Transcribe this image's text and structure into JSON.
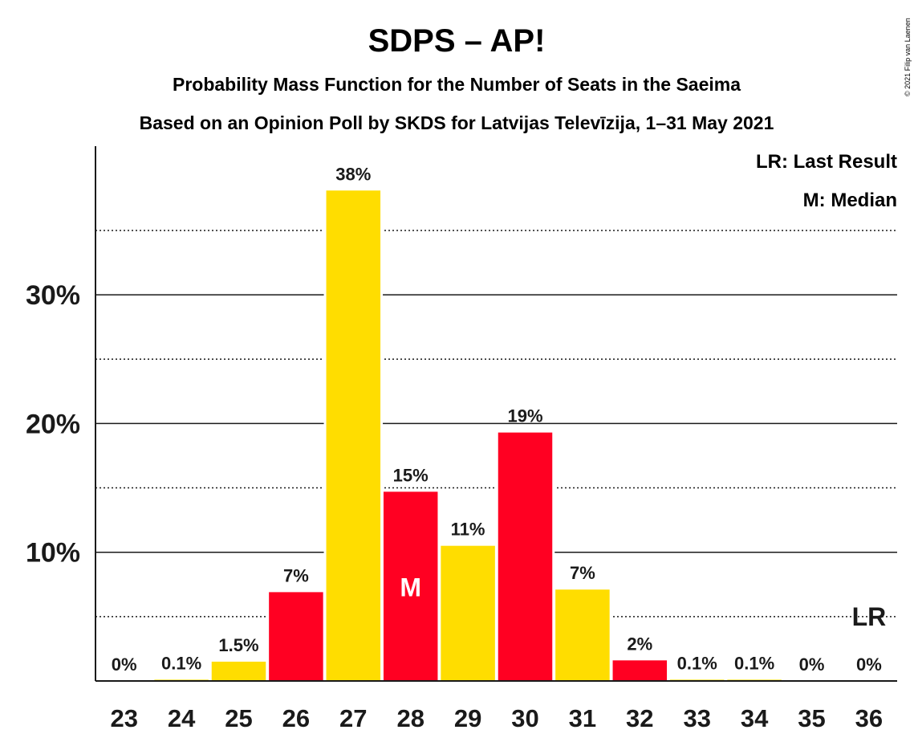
{
  "chart_data": {
    "type": "bar",
    "title": "SDPS – AP!",
    "subtitle": "Probability Mass Function for the Number of Seats in the Saeima",
    "subtitle2": "Based on an Opinion Poll by SKDS for Latvijas Televīzija, 1–31 May 2021",
    "categories": [
      "23",
      "24",
      "25",
      "26",
      "27",
      "28",
      "29",
      "30",
      "31",
      "32",
      "33",
      "34",
      "35",
      "36"
    ],
    "values": [
      0,
      0.1,
      1.5,
      6.9,
      38.1,
      14.7,
      10.5,
      19.3,
      7.1,
      1.6,
      0.1,
      0.1,
      0,
      0
    ],
    "data_labels": [
      "0%",
      "0.1%",
      "1.5%",
      "7%",
      "38%",
      "15%",
      "11%",
      "19%",
      "7%",
      "2%",
      "0.1%",
      "0.1%",
      "0%",
      "0%"
    ],
    "bar_colors": [
      "#FFDD00",
      "#FFDD00",
      "#FFDD00",
      "#FF0022",
      "#FFDD00",
      "#FF0022",
      "#FFDD00",
      "#FF0022",
      "#FFDD00",
      "#FF0022",
      "#FFDD00",
      "#FFDD00",
      "#FFDD00",
      "#FFDD00"
    ],
    "ylim": [
      0,
      41.5
    ],
    "yticks": [
      10,
      20,
      30
    ],
    "ytick_labels": [
      "10%",
      "20%",
      "30%"
    ],
    "minor_gridlines": [
      5,
      15,
      25,
      35
    ],
    "median_category": "28",
    "median_marker": "M",
    "last_result_category": "36",
    "last_result_marker": "LR",
    "legend": [
      "LR: Last Result",
      "M: Median"
    ],
    "legend_position": "top-right",
    "grid": true
  },
  "colors": {
    "yellow": "#FFDD00",
    "red": "#FF0022",
    "text": "#1a1a1a"
  },
  "copyright": "© 2021 Filip van Laenen"
}
